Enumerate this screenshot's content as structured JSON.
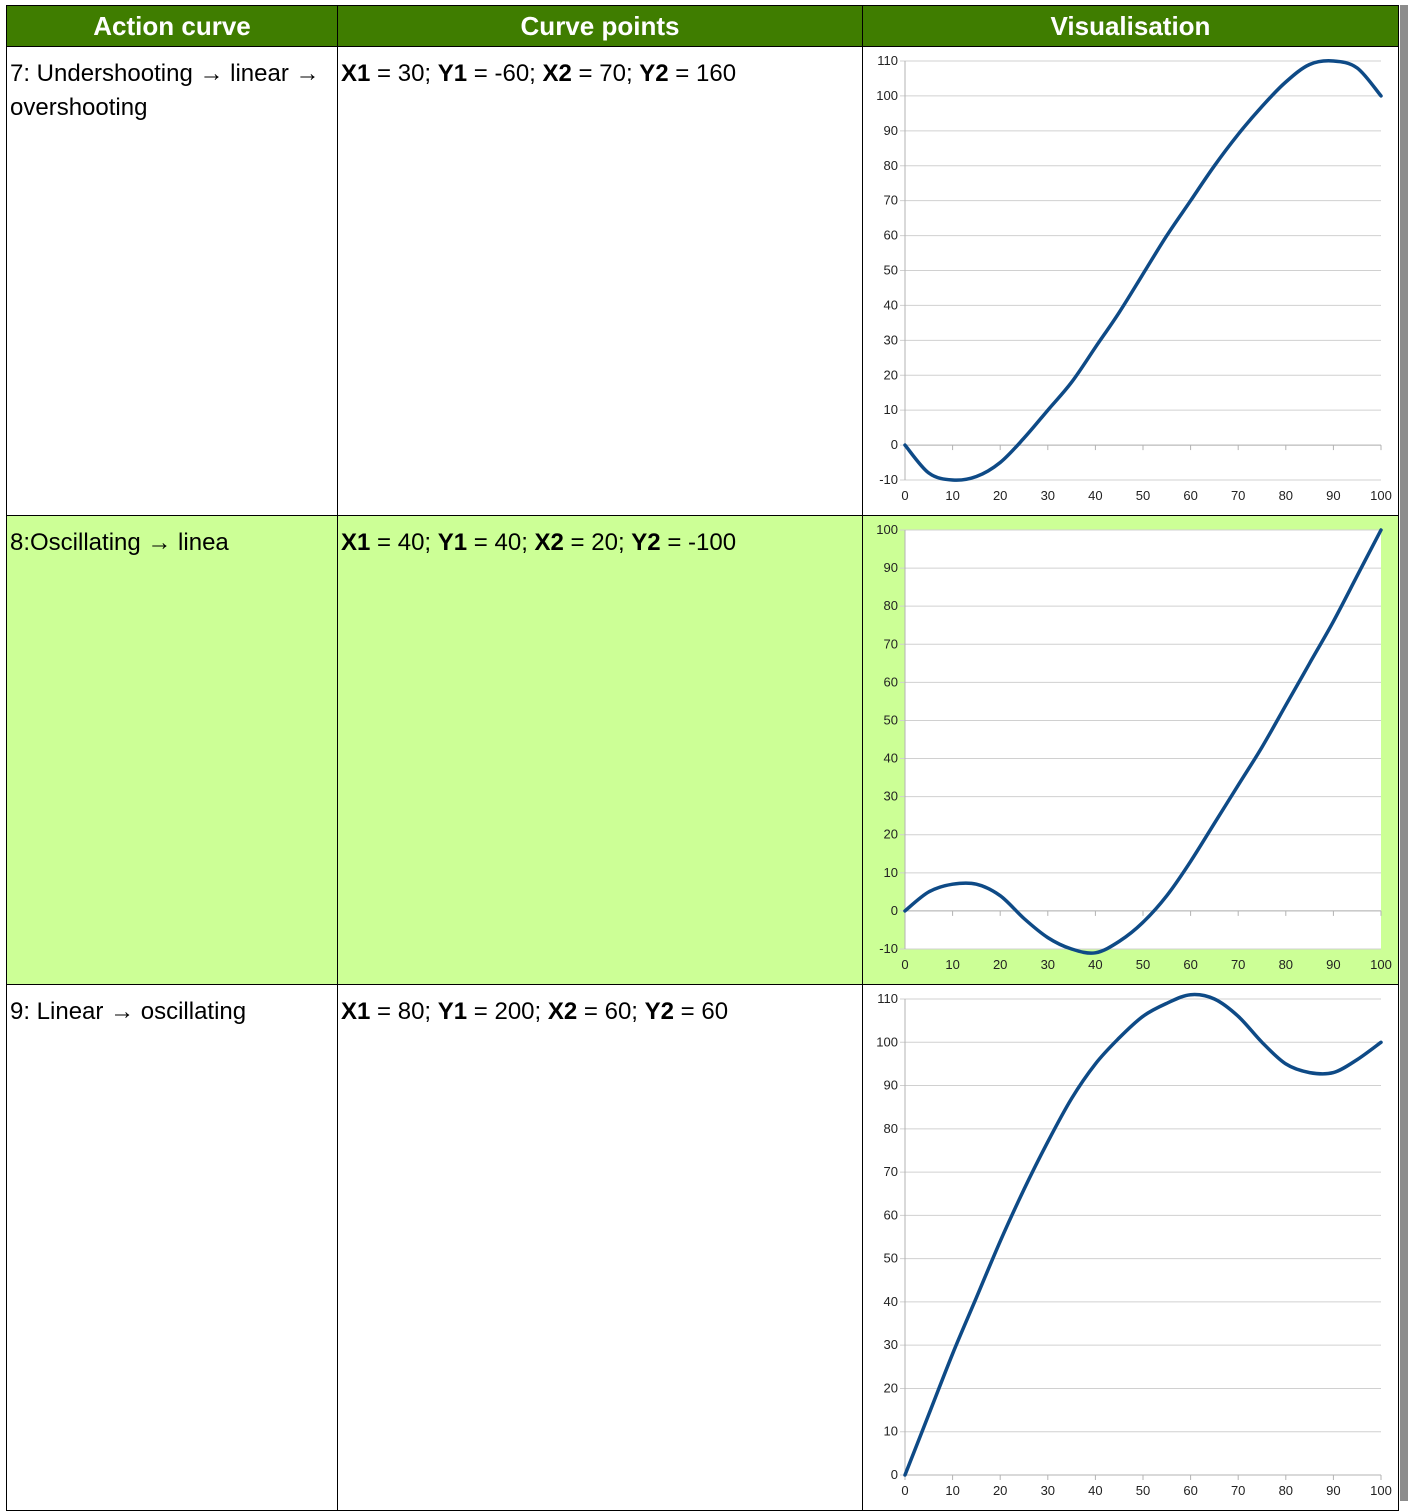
{
  "table": {
    "headers": [
      "Action curve",
      "Curve points",
      "Visualisation"
    ],
    "rows": [
      {
        "action_curve": "7: Undershooting → linear → overshooting",
        "points": {
          "x1_label": "X1",
          "x1": "30",
          "y1_label": "Y1",
          "y1": "-60",
          "x2_label": "X2",
          "x2": "70",
          "y2_label": "Y2",
          "y2": "160"
        },
        "highlighted": false
      },
      {
        "action_curve": "8:Oscillating → linea",
        "points": {
          "x1_label": "X1",
          "x1": "40",
          "y1_label": "Y1",
          "y1": "40",
          "x2_label": "X2",
          "x2": "20",
          "y2_label": "Y2",
          "y2": "-100"
        },
        "highlighted": true
      },
      {
        "action_curve": "9: Linear → oscillating",
        "points": {
          "x1_label": "X1",
          "x1": "80",
          "y1_label": "Y1",
          "y1": "200",
          "x2_label": "X2",
          "x2": "60",
          "y2_label": "Y2",
          "y2": "60"
        },
        "highlighted": false
      }
    ]
  },
  "colors": {
    "header_bg": "#3f7d00",
    "highlight_bg": "#ccff96",
    "curve": "#0e4a86",
    "grid": "#d0d0d0"
  },
  "chart_data": [
    {
      "type": "line",
      "x": [
        0,
        5,
        10,
        15,
        20,
        25,
        30,
        35,
        40,
        45,
        50,
        55,
        60,
        65,
        70,
        75,
        80,
        85,
        90,
        95,
        100
      ],
      "series": [
        {
          "values": [
            0,
            -8,
            -10,
            -9,
            -5,
            2,
            10,
            18,
            28,
            38,
            49,
            60,
            70,
            80,
            89,
            97,
            104,
            109,
            110,
            108,
            100
          ]
        }
      ],
      "xticks": [
        0,
        10,
        20,
        30,
        40,
        50,
        60,
        70,
        80,
        90,
        100
      ],
      "yticks": [
        -10,
        0,
        10,
        20,
        30,
        40,
        50,
        60,
        70,
        80,
        90,
        100,
        110
      ],
      "xlim": [
        0,
        100
      ],
      "ylim": [
        -10,
        110
      ],
      "grid": true
    },
    {
      "type": "line",
      "x": [
        0,
        5,
        10,
        15,
        20,
        25,
        30,
        35,
        40,
        45,
        50,
        55,
        60,
        65,
        70,
        75,
        80,
        85,
        90,
        95,
        100
      ],
      "series": [
        {
          "values": [
            0,
            5,
            7,
            7,
            4,
            -2,
            -7,
            -10,
            -11,
            -8,
            -3,
            4,
            13,
            23,
            33,
            43,
            54,
            65,
            76,
            88,
            100
          ]
        }
      ],
      "xticks": [
        0,
        10,
        20,
        30,
        40,
        50,
        60,
        70,
        80,
        90,
        100
      ],
      "yticks": [
        -10,
        0,
        10,
        20,
        30,
        40,
        50,
        60,
        70,
        80,
        90,
        100
      ],
      "xlim": [
        0,
        100
      ],
      "ylim": [
        -10,
        100
      ],
      "grid": true
    },
    {
      "type": "line",
      "x": [
        0,
        5,
        10,
        15,
        20,
        25,
        30,
        35,
        40,
        45,
        50,
        55,
        60,
        65,
        70,
        75,
        80,
        85,
        90,
        95,
        100
      ],
      "series": [
        {
          "values": [
            0,
            14,
            28,
            41,
            54,
            66,
            77,
            87,
            95,
            101,
            106,
            109,
            111,
            110,
            106,
            100,
            95,
            93,
            93,
            96,
            100
          ]
        }
      ],
      "xticks": [
        0,
        10,
        20,
        30,
        40,
        50,
        60,
        70,
        80,
        90,
        100
      ],
      "yticks": [
        0,
        10,
        20,
        30,
        40,
        50,
        60,
        70,
        80,
        90,
        100,
        110
      ],
      "xlim": [
        0,
        100
      ],
      "ylim": [
        0,
        110
      ],
      "grid": true
    }
  ]
}
